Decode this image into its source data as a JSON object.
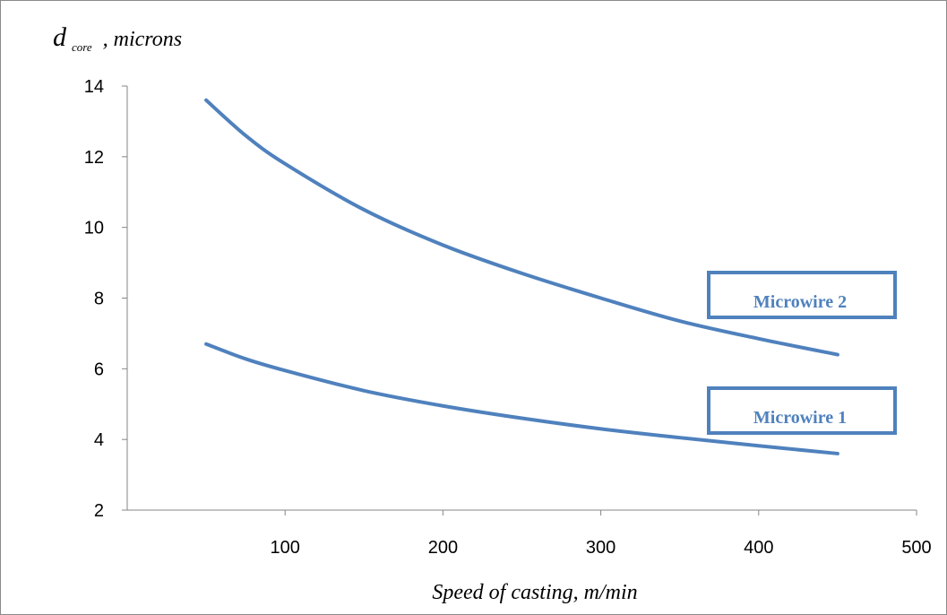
{
  "chart_data": {
    "type": "line",
    "ylabel": {
      "symbol": "d",
      "subscript": "core",
      "unit": ", microns"
    },
    "xlabel": "Speed of casting, m/min",
    "xlim": [
      0,
      500
    ],
    "ylim": [
      2,
      14
    ],
    "xticks": [
      100,
      200,
      300,
      400,
      500
    ],
    "yticks": [
      2,
      4,
      6,
      8,
      10,
      12,
      14
    ],
    "grid": false,
    "line_color": "#4F81BD",
    "series": [
      {
        "name": "Microwire 1",
        "x": [
          50,
          75,
          100,
          150,
          200,
          250,
          300,
          350,
          400,
          450
        ],
        "y": [
          6.7,
          6.28,
          5.95,
          5.38,
          4.95,
          4.6,
          4.3,
          4.05,
          3.82,
          3.6
        ]
      },
      {
        "name": "Microwire 2",
        "x": [
          50,
          75,
          100,
          150,
          200,
          250,
          300,
          350,
          400,
          450
        ],
        "y": [
          13.6,
          12.6,
          11.8,
          10.5,
          9.5,
          8.7,
          8.0,
          7.35,
          6.85,
          6.4
        ]
      }
    ]
  }
}
